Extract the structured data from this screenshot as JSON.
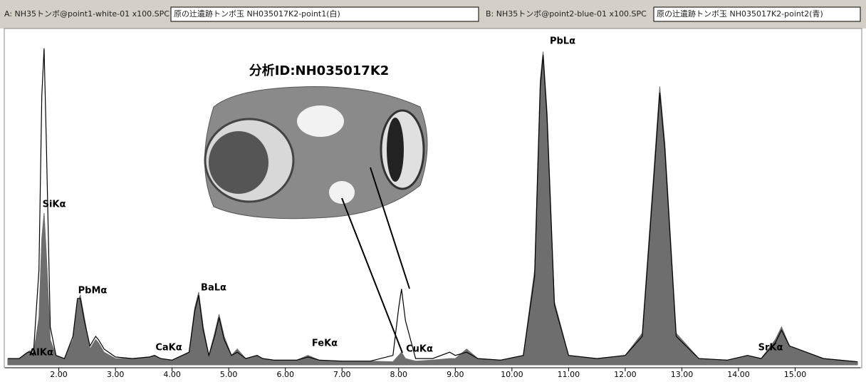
{
  "chart_data": {
    "type": "spectrum",
    "title": "分析ID:NH035017K2",
    "xlim": [
      1.05,
      16.15
    ],
    "xticks": [
      {
        "value": 2,
        "label": "2.00"
      },
      {
        "value": 3,
        "label": "3.00"
      },
      {
        "value": 4,
        "label": "4.00"
      },
      {
        "value": 5,
        "label": "5.00"
      },
      {
        "value": 6,
        "label": "6.00"
      },
      {
        "value": 7,
        "label": "7.00"
      },
      {
        "value": 8,
        "label": "8.00"
      },
      {
        "value": 9,
        "label": "9.00"
      },
      {
        "value": 10,
        "label": "10.00"
      },
      {
        "value": 11,
        "label": "11.00"
      },
      {
        "value": 12,
        "label": "12.00"
      },
      {
        "value": 13,
        "label": "13.00"
      },
      {
        "value": 14,
        "label": "14.00"
      },
      {
        "value": 15,
        "label": "15.00"
      }
    ],
    "annotations": [
      "AlKα",
      "SiKα",
      "PbMα",
      "CaKα",
      "BaLα",
      "FeKα",
      "CuKα",
      "PbLα",
      "SrKα"
    ],
    "x": [
      1.1,
      1.3,
      1.45,
      1.49,
      1.55,
      1.65,
      1.7,
      1.74,
      1.78,
      1.85,
      1.95,
      2.1,
      2.25,
      2.33,
      2.38,
      2.45,
      2.55,
      2.65,
      2.7,
      2.8,
      3.0,
      3.3,
      3.6,
      3.69,
      3.8,
      4.0,
      4.3,
      4.4,
      4.47,
      4.55,
      4.65,
      4.75,
      4.83,
      4.92,
      5.05,
      5.15,
      5.3,
      5.5,
      5.6,
      5.8,
      6.2,
      6.4,
      6.6,
      7.0,
      7.5,
      7.9,
      8.0,
      8.05,
      8.12,
      8.3,
      8.6,
      8.9,
      9.0,
      9.2,
      9.4,
      9.8,
      10.2,
      10.4,
      10.5,
      10.55,
      10.62,
      10.75,
      11.0,
      11.5,
      12.0,
      12.3,
      12.5,
      12.61,
      12.7,
      12.9,
      13.3,
      13.8,
      14.16,
      14.4,
      14.65,
      14.76,
      14.9,
      15.2,
      15.5,
      16.1
    ],
    "series": [
      {
        "name": "A: NH35トンボ@point1-white-01 x100.SPC",
        "sample": "原の辻遺跡トンボ玉  NH035017K2-point1(白)",
        "color": "#6e6e6e",
        "values": [
          2,
          2,
          4,
          4.5,
          3,
          15,
          40,
          48,
          35,
          8,
          3,
          2,
          8,
          20,
          22,
          15,
          5,
          8,
          7,
          4,
          2,
          2,
          2.5,
          3,
          2,
          1.5,
          4,
          18,
          23,
          12,
          3,
          10,
          16,
          9,
          3,
          5,
          2,
          3,
          2,
          1.5,
          1.5,
          3,
          1.5,
          1.2,
          1.2,
          1,
          3,
          4,
          2,
          1.2,
          1.5,
          2,
          2,
          5,
          2,
          1.5,
          3,
          30,
          90,
          99,
          80,
          20,
          3,
          2,
          3,
          10,
          60,
          88,
          70,
          10,
          2,
          1.5,
          3,
          2,
          8,
          12,
          6,
          4,
          2,
          1
        ]
      },
      {
        "name": "B: NH35トンボ@point2-blue-01 x100.SPC",
        "sample": "原の辻遺跡トンボ玉  NH035017K2-point2(青)",
        "color": "#000000",
        "values": [
          2,
          2,
          4,
          4,
          3,
          30,
          85,
          100,
          70,
          12,
          3,
          2,
          9,
          21,
          21,
          14,
          6,
          9,
          8,
          5,
          2.5,
          2,
          2.5,
          3,
          2,
          1.5,
          4,
          17,
          22,
          11,
          3,
          9,
          15,
          8,
          3,
          4,
          2,
          3,
          2,
          1.5,
          1.5,
          2.5,
          1.5,
          1.2,
          1.2,
          3,
          18,
          24,
          14,
          2,
          2,
          4,
          3,
          4,
          2,
          1.5,
          3,
          28,
          88,
          98,
          78,
          19,
          3,
          2,
          3,
          9,
          58,
          86,
          68,
          9,
          2,
          1.5,
          3,
          2,
          7,
          11,
          6,
          4,
          2,
          1
        ]
      }
    ]
  }
}
